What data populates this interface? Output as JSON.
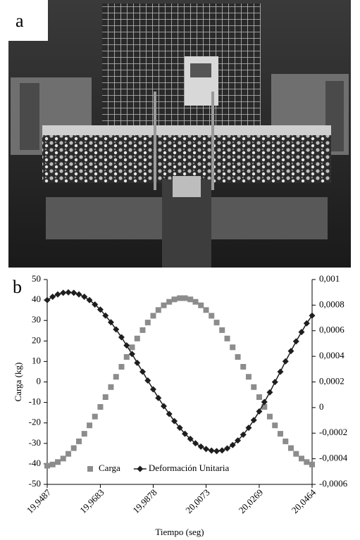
{
  "panel_labels": [
    "a",
    "b"
  ],
  "chart_data": {
    "type": "line",
    "xlabel": "Tiempo (seg)",
    "ylabel": "Carga (kg)",
    "x": [
      19.9487,
      19.9507,
      19.9526,
      19.9546,
      19.9565,
      19.9585,
      19.9604,
      19.9624,
      19.9643,
      19.9663,
      19.9683,
      19.9702,
      19.9722,
      19.9741,
      19.9761,
      19.978,
      19.98,
      19.9819,
      19.9839,
      19.9858,
      19.9878,
      19.9897,
      19.9917,
      19.9937,
      19.9956,
      19.9976,
      19.9995,
      20.0015,
      20.0034,
      20.0054,
      20.0073,
      20.0093,
      20.0112,
      20.0132,
      20.0151,
      20.0171,
      20.019,
      20.021,
      20.023,
      20.0249,
      20.0269,
      20.0288,
      20.0308,
      20.0327,
      20.0347,
      20.0366,
      20.0386,
      20.0405,
      20.0425,
      20.0444,
      20.0464
    ],
    "xlim": [
      19.9487,
      20.0464
    ],
    "xticks": [
      {
        "value": 19.9487,
        "label": "19,9487"
      },
      {
        "value": 19.9683,
        "label": "19,9683"
      },
      {
        "value": 19.9878,
        "label": "19,9878"
      },
      {
        "value": 20.0073,
        "label": "20,0073"
      },
      {
        "value": 20.0269,
        "label": "20,0269"
      },
      {
        "value": 20.0464,
        "label": "20,0464"
      }
    ],
    "ylim": [
      -50,
      50
    ],
    "yticks": [
      -50,
      -40,
      -30,
      -20,
      -10,
      0,
      10,
      20,
      30,
      40,
      50
    ],
    "y2lim": [
      -0.0006,
      0.001
    ],
    "y2ticks": [
      {
        "value": -0.0006,
        "label": "-0,0006"
      },
      {
        "value": -0.0004,
        "label": "-0,0004"
      },
      {
        "value": -0.0002,
        "label": "-0,0002"
      },
      0,
      {
        "value": 0.0002,
        "label": "0,0002"
      },
      {
        "value": 0.0004,
        "label": "0,0004"
      },
      {
        "value": 0.0006,
        "label": "0,0006"
      },
      {
        "value": 0.0008,
        "label": "0,0008"
      },
      {
        "value": 0.001,
        "label": "0,001"
      }
    ],
    "legend": "lower center",
    "series": [
      {
        "name": "Carga",
        "color": "#8c8c8c",
        "marker": "square",
        "line": false,
        "values": [
          -40.9,
          -40.3,
          -39.1,
          -37.4,
          -35.1,
          -32.3,
          -29.0,
          -25.3,
          -21.2,
          -16.9,
          -12.2,
          -7.4,
          -2.5,
          2.5,
          7.4,
          12.2,
          16.9,
          21.2,
          25.3,
          29.0,
          32.3,
          35.1,
          37.4,
          39.1,
          40.3,
          40.9,
          40.9,
          40.3,
          39.1,
          37.4,
          35.1,
          32.3,
          29.0,
          25.3,
          21.2,
          16.9,
          12.2,
          7.4,
          2.5,
          -2.5,
          -7.4,
          -12.2,
          -16.9,
          -21.2,
          -25.3,
          -29.0,
          -32.3,
          -35.1,
          -37.4,
          -39.1,
          -40.3
        ]
      },
      {
        "name": "Deformación Unitaria",
        "color": "#1e1e1e",
        "marker": "diamond",
        "line": true,
        "axis": "y2",
        "values": [
          0.000839,
          0.000865,
          0.000884,
          0.000896,
          0.0009,
          0.000896,
          0.000884,
          0.000865,
          0.000839,
          0.000805,
          0.000765,
          0.000718,
          0.000666,
          0.00061,
          0.000549,
          0.000485,
          0.000418,
          0.000349,
          0.00028,
          0.000211,
          0.000142,
          7.5e-05,
          1.1e-05,
          -5e-05,
          -0.000106,
          -0.000158,
          -0.000205,
          -0.000245,
          -0.000279,
          -0.000305,
          -0.000324,
          -0.000336,
          -0.00034,
          -0.000335,
          -0.000319,
          -0.000293,
          -0.000257,
          -0.000212,
          -0.000158,
          -9.8e-05,
          -3e-05,
          4.3e-05,
          0.000119,
          0.000199,
          0.00028,
          0.000361,
          0.000441,
          0.000517,
          0.00059,
          0.000658,
          0.000718
        ]
      }
    ]
  }
}
